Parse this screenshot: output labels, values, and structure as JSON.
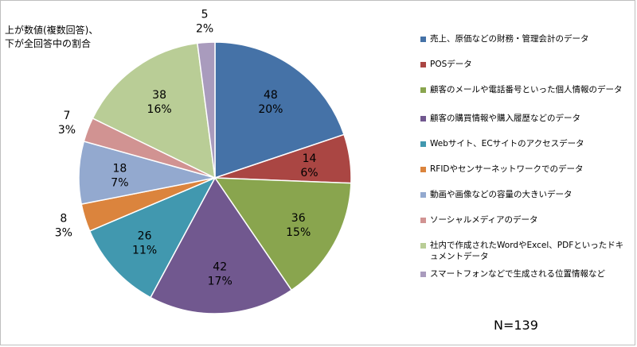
{
  "note": {
    "line1": "上が数値(複数回答)、",
    "line2": "下が全回答中の割合"
  },
  "total_label": "N=139",
  "chart_data": {
    "type": "pie",
    "title": "",
    "slices": [
      {
        "name": "売上、原価などの財務・管理会計のデータ",
        "value": 48,
        "percent": "20%",
        "color": "#4572a7"
      },
      {
        "name": "POSデータ",
        "value": 14,
        "percent": "6%",
        "color": "#aa4643"
      },
      {
        "name": "顧客のメールや電話番号といった個人情報のデータ",
        "value": 36,
        "percent": "15%",
        "color": "#89a54e"
      },
      {
        "name": "顧客の購買情報や購入履歴などのデータ",
        "value": 42,
        "percent": "17%",
        "color": "#71588f"
      },
      {
        "name": "Webサイト、ECサイトのアクセスデータ",
        "value": 26,
        "percent": "11%",
        "color": "#4198af"
      },
      {
        "name": "RFIDやセンサーネットワークでのデータ",
        "value": 8,
        "percent": "3%",
        "color": "#db843d"
      },
      {
        "name": "動画や画像などの容量の大きいデータ",
        "value": 18,
        "percent": "7%",
        "color": "#93a9cf"
      },
      {
        "name": "ソーシャルメディアのデータ",
        "value": 7,
        "percent": "3%",
        "color": "#d19392"
      },
      {
        "name": "社内で作成されたWordやExcel、PDFといったドキュメントデータ",
        "value": 38,
        "percent": "16%",
        "color": "#b9cd96"
      },
      {
        "name": "スマートフォンなどで生成される位置情報など",
        "value": 5,
        "percent": "2%",
        "color": "#a99bbd"
      }
    ],
    "legend_position": "right"
  }
}
